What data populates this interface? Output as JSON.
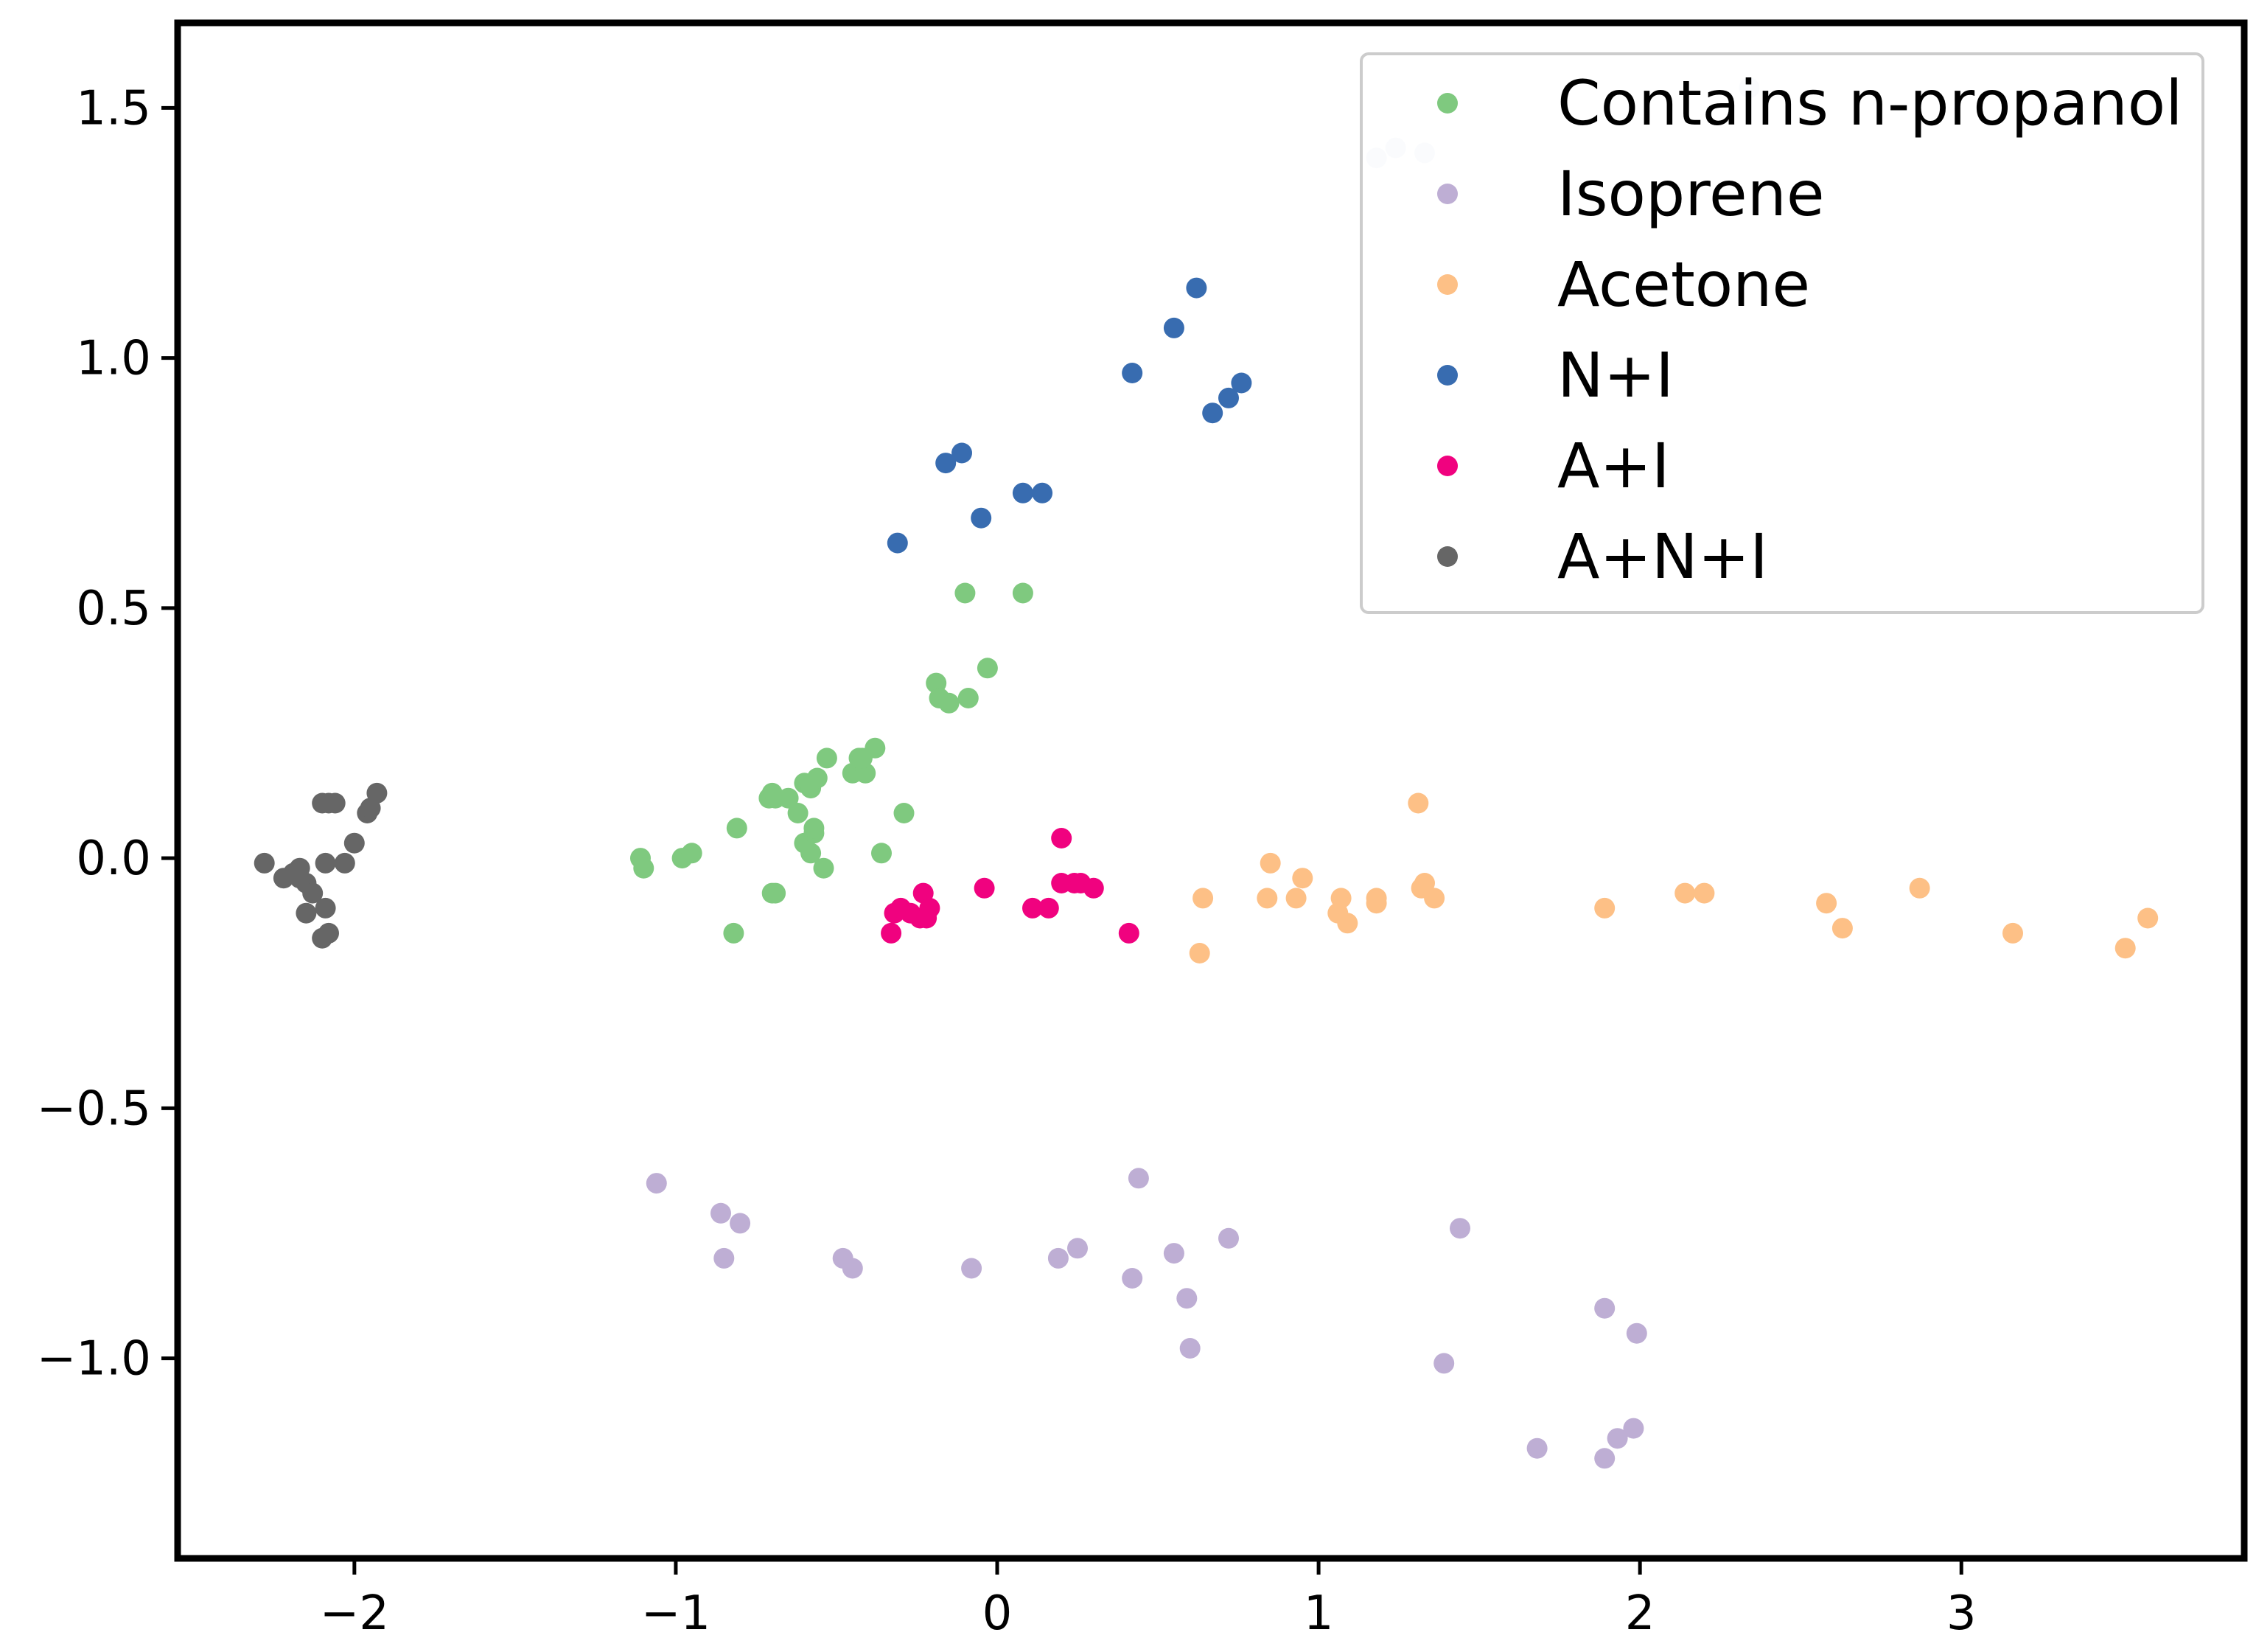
{
  "chart_data": {
    "type": "scatter",
    "title": "",
    "xlabel": "",
    "ylabel": "",
    "xlim": [
      -2.55,
      3.88
    ],
    "ylim": [
      -1.4,
      1.67
    ],
    "xticks": [
      {
        "value": -2,
        "label": "−2"
      },
      {
        "value": -1,
        "label": "−1"
      },
      {
        "value": 0,
        "label": "0"
      },
      {
        "value": 1,
        "label": "1"
      },
      {
        "value": 2,
        "label": "2"
      },
      {
        "value": 3,
        "label": "3"
      }
    ],
    "yticks": [
      {
        "value": 1.5,
        "label": "1.5"
      },
      {
        "value": 1.0,
        "label": "1.0"
      },
      {
        "value": 0.5,
        "label": "0.5"
      },
      {
        "value": 0.0,
        "label": "0.0"
      },
      {
        "value": -0.5,
        "label": "−0.5"
      },
      {
        "value": -1.0,
        "label": "−1.0"
      }
    ],
    "grid": false,
    "legend_position": "top-right",
    "series": [
      {
        "name": "Contains n-propanol",
        "color": "#7fc97f",
        "points": [
          [
            -1.11,
            0.0
          ],
          [
            -1.1,
            -0.02
          ],
          [
            -0.98,
            0.0
          ],
          [
            -0.95,
            0.01
          ],
          [
            -0.81,
            0.06
          ],
          [
            -0.82,
            -0.15
          ],
          [
            -0.71,
            0.12
          ],
          [
            -0.7,
            0.13
          ],
          [
            -0.69,
            0.12
          ],
          [
            -0.65,
            0.12
          ],
          [
            -0.62,
            0.09
          ],
          [
            -0.6,
            0.15
          ],
          [
            -0.58,
            0.14
          ],
          [
            -0.56,
            0.16
          ],
          [
            -0.53,
            0.2
          ],
          [
            -0.6,
            0.03
          ],
          [
            -0.57,
            0.05
          ],
          [
            -0.57,
            0.06
          ],
          [
            -0.58,
            0.01
          ],
          [
            -0.54,
            -0.02
          ],
          [
            -0.69,
            -0.07
          ],
          [
            -0.7,
            -0.07
          ],
          [
            -0.45,
            0.17
          ],
          [
            -0.43,
            0.2
          ],
          [
            -0.41,
            0.17
          ],
          [
            -0.38,
            0.22
          ],
          [
            -0.42,
            0.2
          ],
          [
            -0.36,
            0.01
          ],
          [
            -0.29,
            0.09
          ],
          [
            -0.19,
            0.35
          ],
          [
            -0.18,
            0.32
          ],
          [
            -0.15,
            0.31
          ],
          [
            -0.09,
            0.32
          ],
          [
            -0.03,
            0.38
          ],
          [
            -0.1,
            0.53
          ],
          [
            0.08,
            0.53
          ]
        ]
      },
      {
        "name": "Isoprene",
        "color": "#beaed4",
        "points": [
          [
            -1.06,
            -0.65
          ],
          [
            -0.86,
            -0.71
          ],
          [
            -0.85,
            -0.8
          ],
          [
            -0.8,
            -0.73
          ],
          [
            -0.48,
            -0.8
          ],
          [
            -0.45,
            -0.82
          ],
          [
            -0.08,
            -0.82
          ],
          [
            0.19,
            -0.8
          ],
          [
            0.25,
            -0.78
          ],
          [
            0.42,
            -0.84
          ],
          [
            0.44,
            -0.64
          ],
          [
            0.55,
            -0.79
          ],
          [
            0.59,
            -0.88
          ],
          [
            0.6,
            -0.98
          ],
          [
            0.72,
            -0.76
          ],
          [
            1.39,
            -1.01
          ],
          [
            1.44,
            -0.74
          ],
          [
            1.68,
            -1.18
          ],
          [
            1.89,
            -0.9
          ],
          [
            1.89,
            -1.2
          ],
          [
            1.93,
            -1.16
          ],
          [
            1.98,
            -1.14
          ],
          [
            1.99,
            -0.95
          ]
        ]
      },
      {
        "name": "Acetone",
        "color": "#fdc086",
        "points": [
          [
            0.64,
            -0.08
          ],
          [
            0.63,
            -0.19
          ],
          [
            0.84,
            -0.08
          ],
          [
            0.85,
            -0.01
          ],
          [
            0.93,
            -0.08
          ],
          [
            0.95,
            -0.04
          ],
          [
            1.06,
            -0.11
          ],
          [
            1.07,
            -0.08
          ],
          [
            1.09,
            -0.13
          ],
          [
            1.18,
            -0.09
          ],
          [
            1.18,
            -0.08
          ],
          [
            1.32,
            -0.06
          ],
          [
            1.33,
            -0.05
          ],
          [
            1.31,
            0.11
          ],
          [
            1.36,
            -0.08
          ],
          [
            1.89,
            -0.1
          ],
          [
            2.14,
            -0.07
          ],
          [
            2.2,
            -0.07
          ],
          [
            2.58,
            -0.09
          ],
          [
            2.63,
            -0.14
          ],
          [
            2.87,
            -0.06
          ],
          [
            3.16,
            -0.15
          ],
          [
            3.51,
            -0.18
          ],
          [
            3.58,
            -0.12
          ]
        ]
      },
      {
        "name": "N+I",
        "color": "#386cb0",
        "points": [
          [
            -0.31,
            0.63
          ],
          [
            -0.16,
            0.79
          ],
          [
            -0.11,
            0.81
          ],
          [
            -0.05,
            0.68
          ],
          [
            0.08,
            0.73
          ],
          [
            0.14,
            0.73
          ],
          [
            0.42,
            0.97
          ],
          [
            0.55,
            1.06
          ],
          [
            0.62,
            1.14
          ],
          [
            0.67,
            0.89
          ],
          [
            0.72,
            0.92
          ],
          [
            0.76,
            0.95
          ]
        ]
      },
      {
        "name": "A+I",
        "color": "#f0027f",
        "points": [
          [
            -0.33,
            -0.15
          ],
          [
            -0.32,
            -0.11
          ],
          [
            -0.3,
            -0.1
          ],
          [
            -0.27,
            -0.11
          ],
          [
            -0.24,
            -0.12
          ],
          [
            -0.23,
            -0.07
          ],
          [
            -0.21,
            -0.1
          ],
          [
            -0.22,
            -0.12
          ],
          [
            -0.04,
            -0.06
          ],
          [
            0.11,
            -0.1
          ],
          [
            0.16,
            -0.1
          ],
          [
            0.2,
            0.04
          ],
          [
            0.2,
            -0.05
          ],
          [
            0.24,
            -0.05
          ],
          [
            0.26,
            -0.05
          ],
          [
            0.3,
            -0.06
          ],
          [
            0.41,
            -0.15
          ]
        ]
      },
      {
        "name": "A+N+I",
        "color": "#666666",
        "points": [
          [
            -2.28,
            -0.01
          ],
          [
            -2.22,
            -0.04
          ],
          [
            -2.19,
            -0.03
          ],
          [
            -2.17,
            -0.02
          ],
          [
            -2.17,
            -0.04
          ],
          [
            -2.15,
            -0.05
          ],
          [
            -2.13,
            -0.07
          ],
          [
            -2.15,
            -0.11
          ],
          [
            -2.1,
            0.11
          ],
          [
            -2.08,
            0.11
          ],
          [
            -2.06,
            0.11
          ],
          [
            -2.09,
            -0.01
          ],
          [
            -2.03,
            -0.01
          ],
          [
            -2.09,
            -0.1
          ],
          [
            -2.08,
            -0.15
          ],
          [
            -2.1,
            -0.16
          ],
          [
            -2.0,
            0.03
          ],
          [
            -1.96,
            0.09
          ],
          [
            -1.95,
            0.1
          ],
          [
            -1.93,
            0.13
          ]
        ]
      },
      {
        "name": "",
        "color": "#dae5f2",
        "points": [
          [
            1.18,
            1.4
          ],
          [
            1.24,
            1.42
          ],
          [
            1.33,
            1.41
          ],
          [
            2.34,
            1.54
          ]
        ]
      }
    ]
  }
}
